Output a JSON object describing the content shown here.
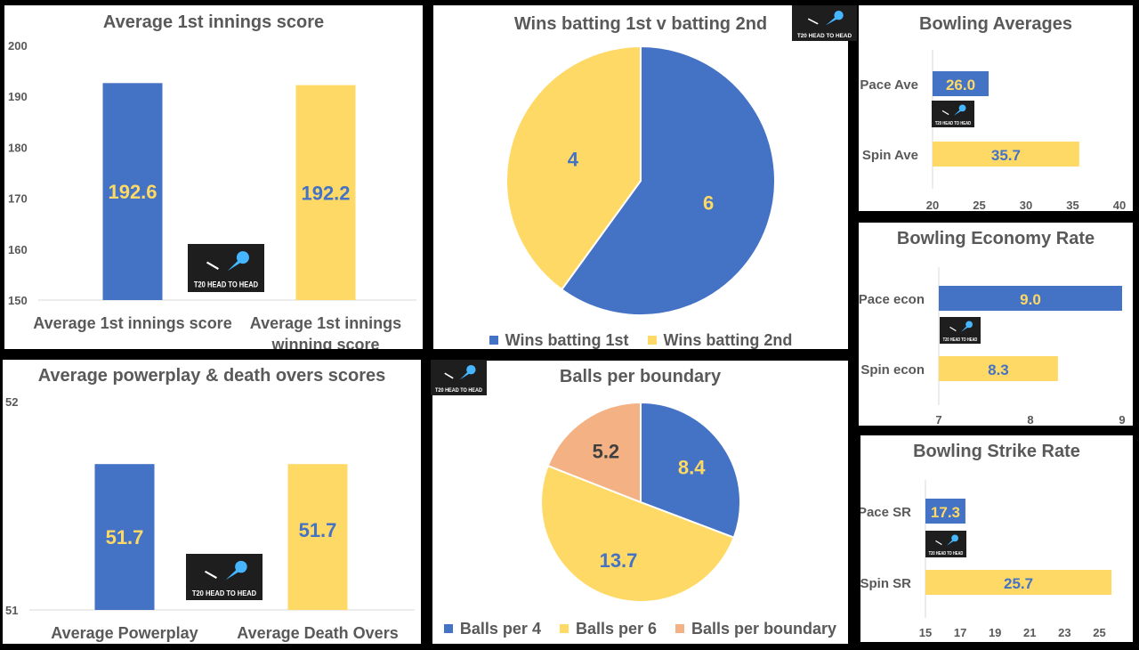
{
  "colors": {
    "blue": "#4472C4",
    "yellow": "#FFD966",
    "salmon": "#F4B183",
    "axis_text": "#595959"
  },
  "logo": {
    "text": "T20 HEAD TO HEAD",
    "icon": "cricket-ball-bat-icon"
  },
  "chart_data": [
    {
      "id": "first_innings",
      "type": "bar",
      "title": "Average 1st innings score",
      "categories": [
        "Average 1st innings score",
        "Average 1st innings winning score"
      ],
      "values": [
        192.6,
        192.2
      ],
      "labels": [
        "192.6",
        "192.2"
      ],
      "ylim": [
        150,
        200
      ],
      "yticks": [
        "150",
        "160",
        "170",
        "180",
        "190",
        "200"
      ]
    },
    {
      "id": "wins",
      "type": "pie",
      "title": "Wins batting 1st v batting 2nd",
      "categories": [
        "Wins batting 1st",
        "Wins batting 2nd"
      ],
      "values": [
        6,
        4
      ],
      "labels": [
        "6",
        "4"
      ]
    },
    {
      "id": "bowling_avg",
      "type": "bar",
      "orientation": "horizontal",
      "title": "Bowling Averages",
      "categories": [
        "Pace Ave",
        "Spin Ave"
      ],
      "values": [
        26.0,
        35.7
      ],
      "labels": [
        "26.0",
        "35.7"
      ],
      "xlim": [
        20,
        40
      ],
      "xticks": [
        "20",
        "25",
        "30",
        "35",
        "40"
      ]
    },
    {
      "id": "economy",
      "type": "bar",
      "orientation": "horizontal",
      "title": "Bowling Economy Rate",
      "categories": [
        "Pace econ",
        "Spin econ"
      ],
      "values": [
        9.0,
        8.3
      ],
      "labels": [
        "9.0",
        "8.3"
      ],
      "xlim": [
        7,
        9
      ],
      "xticks": [
        "7",
        "8",
        "9"
      ]
    },
    {
      "id": "powerplay_death",
      "type": "bar",
      "title": "Average powerplay & death overs scores",
      "categories": [
        "Average Powerplay",
        "Average Death Overs"
      ],
      "values": [
        51.7,
        51.7
      ],
      "labels": [
        "51.7",
        "51.7"
      ],
      "ylim": [
        51,
        52
      ],
      "yticks": [
        "51",
        "52"
      ]
    },
    {
      "id": "boundary",
      "type": "pie",
      "title": "Balls per boundary",
      "categories": [
        "Balls per 4",
        "Balls per 6",
        "Balls per boundary"
      ],
      "values": [
        8.4,
        13.7,
        5.2
      ],
      "labels": [
        "8.4",
        "13.7",
        "5.2"
      ]
    },
    {
      "id": "strike_rate",
      "type": "bar",
      "orientation": "horizontal",
      "title": "Bowling Strike Rate",
      "categories": [
        "Pace SR",
        "Spin SR"
      ],
      "values": [
        17.3,
        25.7
      ],
      "labels": [
        "17.3",
        "25.7"
      ],
      "xlim": [
        15,
        26
      ],
      "xticks": [
        "15",
        "17",
        "19",
        "21",
        "23",
        "25"
      ]
    }
  ]
}
